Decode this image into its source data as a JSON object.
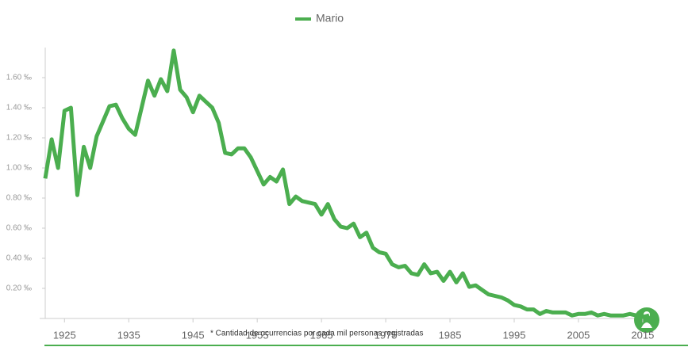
{
  "chart_data": {
    "type": "line",
    "legend": "top-center",
    "footnote": "* Cantidad de ocurrencias por cada mil personas registradas",
    "x": [
      1922,
      1923,
      1924,
      1925,
      1926,
      1927,
      1928,
      1929,
      1930,
      1931,
      1932,
      1933,
      1934,
      1935,
      1936,
      1937,
      1938,
      1939,
      1940,
      1941,
      1942,
      1943,
      1944,
      1945,
      1946,
      1947,
      1948,
      1949,
      1950,
      1951,
      1952,
      1953,
      1954,
      1955,
      1956,
      1957,
      1958,
      1959,
      1960,
      1961,
      1962,
      1963,
      1964,
      1965,
      1966,
      1967,
      1968,
      1969,
      1970,
      1971,
      1972,
      1973,
      1974,
      1975,
      1976,
      1977,
      1978,
      1979,
      1980,
      1981,
      1982,
      1983,
      1984,
      1985,
      1986,
      1987,
      1988,
      1989,
      1990,
      1991,
      1992,
      1993,
      1994,
      1995,
      1996,
      1997,
      1998,
      1999,
      2000,
      2001,
      2002,
      2003,
      2004,
      2005,
      2006,
      2007,
      2008,
      2009,
      2010,
      2011,
      2012,
      2013,
      2014,
      2015,
      2016
    ],
    "series": [
      {
        "name": "Mario",
        "color": "#4bae4f",
        "values": [
          0.93,
          1.19,
          1.0,
          1.38,
          1.4,
          0.82,
          1.14,
          1.0,
          1.21,
          1.31,
          1.41,
          1.42,
          1.33,
          1.26,
          1.22,
          1.4,
          1.58,
          1.48,
          1.59,
          1.51,
          1.78,
          1.52,
          1.47,
          1.37,
          1.48,
          1.44,
          1.4,
          1.3,
          1.1,
          1.09,
          1.13,
          1.13,
          1.07,
          0.98,
          0.89,
          0.94,
          0.91,
          0.99,
          0.76,
          0.81,
          0.78,
          0.77,
          0.76,
          0.69,
          0.76,
          0.66,
          0.61,
          0.6,
          0.63,
          0.54,
          0.57,
          0.47,
          0.44,
          0.43,
          0.36,
          0.34,
          0.35,
          0.3,
          0.29,
          0.36,
          0.3,
          0.31,
          0.25,
          0.31,
          0.24,
          0.3,
          0.21,
          0.22,
          0.19,
          0.16,
          0.15,
          0.14,
          0.12,
          0.09,
          0.08,
          0.06,
          0.06,
          0.03,
          0.05,
          0.04,
          0.04,
          0.04,
          0.02,
          0.03,
          0.03,
          0.04,
          0.02,
          0.03,
          0.02,
          0.02,
          0.02,
          0.03,
          0.02,
          0.01,
          0.02
        ]
      }
    ],
    "xlim": [
      1922,
      2016
    ],
    "xticks": [
      1925,
      1935,
      1945,
      1955,
      1965,
      1975,
      1985,
      1995,
      2005,
      2015
    ],
    "ylim": [
      0,
      1.8
    ],
    "yticks": [
      {
        "value": 0.2,
        "label": "0.20 ‰"
      },
      {
        "value": 0.4,
        "label": "0.40 ‰"
      },
      {
        "value": 0.6,
        "label": "0.60 ‰"
      },
      {
        "value": 0.8,
        "label": "0.80 ‰"
      },
      {
        "value": 1.0,
        "label": "1.00 ‰"
      },
      {
        "value": 1.2,
        "label": "1.20 ‰"
      },
      {
        "value": 1.4,
        "label": "1.40 ‰"
      },
      {
        "value": 1.6,
        "label": "1.60 ‰"
      }
    ],
    "grid": false
  }
}
